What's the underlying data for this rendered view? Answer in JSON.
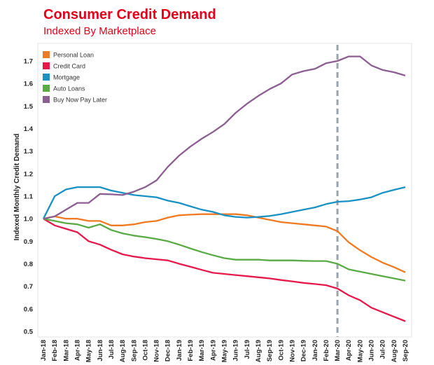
{
  "header": {
    "title": "Consumer Credit Demand",
    "subtitle": "Indexed By Marketplace"
  },
  "chart_data": {
    "type": "line",
    "title": "Consumer Credit Demand",
    "subtitle": "Indexed By Marketplace",
    "xlabel": "",
    "ylabel": "Indexed Monthly Credit Demand",
    "ylim": [
      0.5,
      1.75
    ],
    "yticks": [
      0.5,
      0.6,
      0.7,
      0.8,
      0.9,
      1.0,
      1.1,
      1.2,
      1.3,
      1.4,
      1.5,
      1.6,
      1.7
    ],
    "ytick_labels": [
      "0.5",
      "0.6",
      "0.7",
      "0.8",
      "0.9",
      "1.0",
      "1.1",
      "1.2",
      "1.3",
      "1.4",
      "1.5",
      "1.6",
      "1.7"
    ],
    "grid": false,
    "legend": "top-left",
    "categories": [
      "Jan-18",
      "Feb-18",
      "Mar-18",
      "Apr-18",
      "May-18",
      "Jun-18",
      "Jul-18",
      "Aug-18",
      "Sep-18",
      "Oct-18",
      "Nov-18",
      "Dec-18",
      "Jan-19",
      "Feb-19",
      "Mar-19",
      "Apr-19",
      "May-19",
      "Jun-19",
      "Jul-19",
      "Aug-19",
      "Sep-19",
      "Oct-19",
      "Nov-19",
      "Dec-19",
      "Jan-20",
      "Feb-20",
      "Mar-20",
      "Apr-20",
      "May-20",
      "Jun-20",
      "Jul-20",
      "Aug-20",
      "Sep-20"
    ],
    "reference_line": {
      "x": "Mar-20",
      "style": "dashed",
      "color": "#9aa3a8"
    },
    "series": [
      {
        "name": "Personal Loan",
        "color": "#f07a22",
        "values": [
          1.0,
          1.01,
          1.0,
          1.0,
          0.99,
          0.99,
          0.97,
          0.97,
          0.975,
          0.985,
          0.99,
          1.005,
          1.015,
          1.018,
          1.02,
          1.02,
          1.02,
          1.02,
          1.015,
          1.005,
          0.995,
          0.985,
          0.98,
          0.975,
          0.97,
          0.965,
          0.945,
          0.895,
          0.86,
          0.83,
          0.805,
          0.785,
          0.762
        ]
      },
      {
        "name": "Credit Card",
        "color": "#e5194a",
        "values": [
          1.0,
          0.97,
          0.955,
          0.94,
          0.9,
          0.885,
          0.862,
          0.842,
          0.832,
          0.825,
          0.82,
          0.815,
          0.8,
          0.787,
          0.773,
          0.76,
          0.755,
          0.75,
          0.745,
          0.74,
          0.735,
          0.728,
          0.722,
          0.715,
          0.71,
          0.705,
          0.69,
          0.66,
          0.638,
          0.605,
          0.585,
          0.565,
          0.545
        ]
      },
      {
        "name": "Mortgage",
        "color": "#1a91c5",
        "values": [
          1.0,
          1.1,
          1.13,
          1.14,
          1.14,
          1.14,
          1.125,
          1.115,
          1.105,
          1.1,
          1.095,
          1.08,
          1.07,
          1.055,
          1.04,
          1.03,
          1.015,
          1.008,
          1.005,
          1.008,
          1.012,
          1.02,
          1.03,
          1.04,
          1.05,
          1.065,
          1.075,
          1.078,
          1.085,
          1.095,
          1.115,
          1.128,
          1.14
        ]
      },
      {
        "name": "Auto Loans",
        "color": "#5aaa46",
        "values": [
          1.0,
          0.99,
          0.98,
          0.975,
          0.96,
          0.975,
          0.95,
          0.935,
          0.925,
          0.918,
          0.91,
          0.9,
          0.885,
          0.868,
          0.852,
          0.838,
          0.825,
          0.818,
          0.818,
          0.818,
          0.815,
          0.815,
          0.815,
          0.813,
          0.812,
          0.812,
          0.8,
          0.775,
          0.765,
          0.755,
          0.745,
          0.735,
          0.725
        ]
      },
      {
        "name": "Buy Now Pay Later",
        "color": "#8c5e92",
        "values": [
          1.0,
          1.01,
          1.04,
          1.07,
          1.07,
          1.11,
          1.108,
          1.105,
          1.12,
          1.14,
          1.17,
          1.23,
          1.28,
          1.32,
          1.355,
          1.385,
          1.42,
          1.47,
          1.51,
          1.545,
          1.575,
          1.6,
          1.64,
          1.655,
          1.665,
          1.69,
          1.7,
          1.72,
          1.72,
          1.68,
          1.66,
          1.65,
          1.635
        ]
      }
    ]
  }
}
